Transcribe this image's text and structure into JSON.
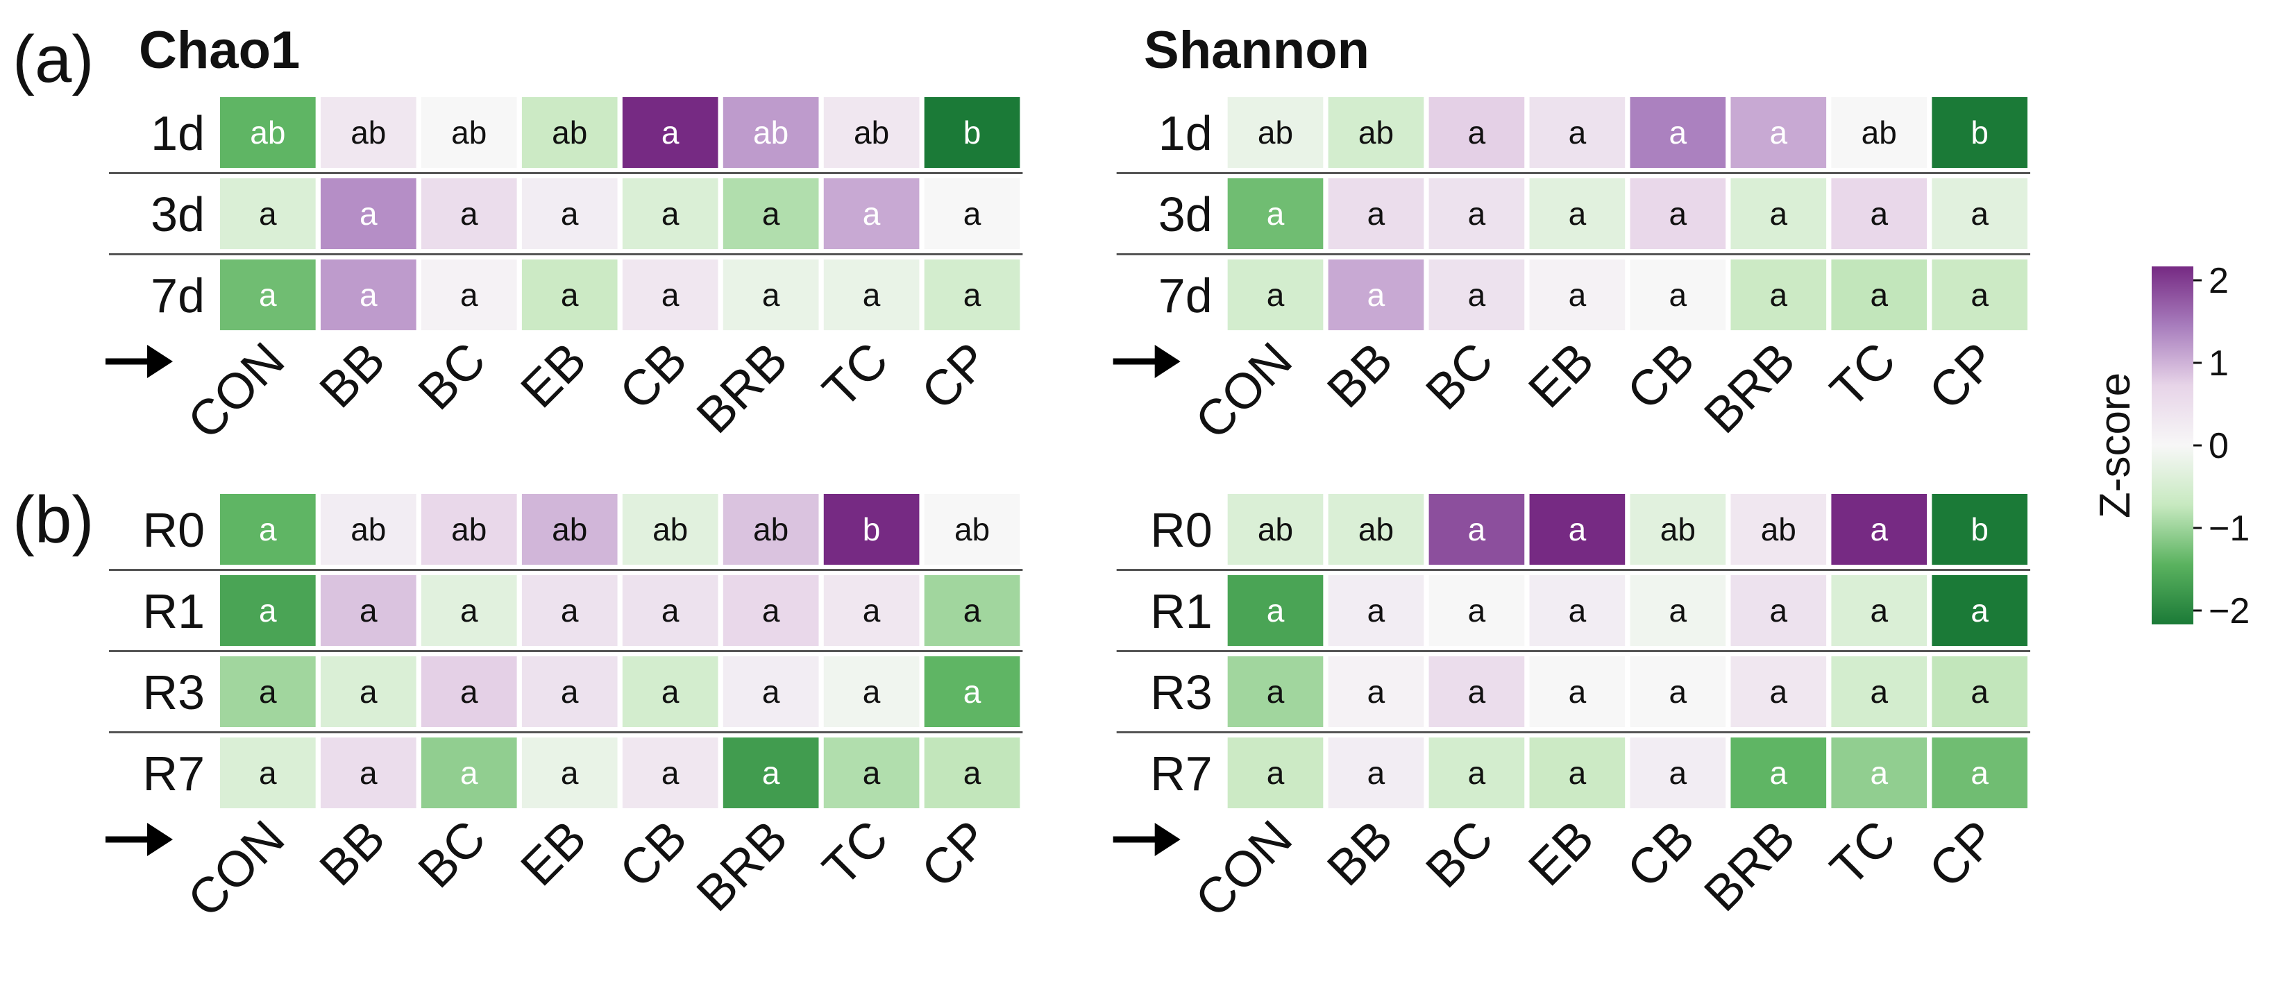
{
  "panels": [
    {
      "letter": "(a)"
    },
    {
      "letter": "(b)"
    }
  ],
  "chart_data": [
    {
      "type": "heatmap",
      "panel": "(a)",
      "title": "Chao1",
      "rows": [
        "1d",
        "3d",
        "7d"
      ],
      "categories": [
        "CON",
        "BB",
        "BC",
        "EB",
        "CB",
        "BRB",
        "TC",
        "CP"
      ],
      "z": [
        [
          -1.3,
          0.3,
          0.0,
          -0.6,
          2.1,
          1.1,
          0.3,
          -2.0
        ],
        [
          -0.4,
          1.2,
          0.5,
          0.2,
          -0.4,
          -0.8,
          1.0,
          0.0
        ],
        [
          -1.2,
          1.1,
          0.1,
          -0.6,
          0.3,
          -0.2,
          -0.2,
          -0.5
        ]
      ],
      "letters": [
        [
          "ab",
          "ab",
          "ab",
          "ab",
          "a",
          "ab",
          "ab",
          "b"
        ],
        [
          "a",
          "a",
          "a",
          "a",
          "a",
          "a",
          "a",
          "a"
        ],
        [
          "a",
          "a",
          "a",
          "a",
          "a",
          "a",
          "a",
          "a"
        ]
      ]
    },
    {
      "type": "heatmap",
      "panel": "(a)",
      "title": "Shannon",
      "rows": [
        "1d",
        "3d",
        "7d"
      ],
      "categories": [
        "CON",
        "BB",
        "BC",
        "EB",
        "CB",
        "BRB",
        "TC",
        "CP"
      ],
      "z": [
        [
          -0.2,
          -0.5,
          0.7,
          0.4,
          1.3,
          1.0,
          0.0,
          -2.0
        ],
        [
          -1.2,
          0.5,
          0.4,
          -0.3,
          0.6,
          -0.4,
          0.6,
          -0.3
        ],
        [
          -0.5,
          1.0,
          0.4,
          0.1,
          0.0,
          -0.6,
          -0.7,
          -0.6
        ]
      ],
      "letters": [
        [
          "ab",
          "ab",
          "a",
          "a",
          "a",
          "a",
          "ab",
          "b"
        ],
        [
          "a",
          "a",
          "a",
          "a",
          "a",
          "a",
          "a",
          "a"
        ],
        [
          "a",
          "a",
          "a",
          "a",
          "a",
          "a",
          "a",
          "a"
        ]
      ]
    },
    {
      "type": "heatmap",
      "panel": "(b)",
      "title": "",
      "rows": [
        "R0",
        "R1",
        "R3",
        "R7"
      ],
      "categories": [
        "CON",
        "BB",
        "BC",
        "EB",
        "CB",
        "BRB",
        "TC",
        "CP"
      ],
      "z": [
        [
          -1.3,
          0.2,
          0.6,
          0.9,
          -0.3,
          0.8,
          2.1,
          0.0
        ],
        [
          -1.5,
          0.8,
          -0.3,
          0.4,
          0.4,
          0.6,
          0.3,
          -0.9
        ],
        [
          -0.9,
          -0.4,
          0.7,
          0.4,
          -0.5,
          0.2,
          -0.1,
          -1.3
        ],
        [
          -0.4,
          0.5,
          -1.0,
          -0.2,
          0.3,
          -1.6,
          -0.8,
          -0.7
        ]
      ],
      "letters": [
        [
          "a",
          "ab",
          "ab",
          "ab",
          "ab",
          "ab",
          "b",
          "ab"
        ],
        [
          "a",
          "a",
          "a",
          "a",
          "a",
          "a",
          "a",
          "a"
        ],
        [
          "a",
          "a",
          "a",
          "a",
          "a",
          "a",
          "a",
          "a"
        ],
        [
          "a",
          "a",
          "a",
          "a",
          "a",
          "a",
          "a",
          "a"
        ]
      ]
    },
    {
      "type": "heatmap",
      "panel": "(b)",
      "title": "",
      "rows": [
        "R0",
        "R1",
        "R3",
        "R7"
      ],
      "categories": [
        "CON",
        "BB",
        "BC",
        "EB",
        "CB",
        "BRB",
        "TC",
        "CP"
      ],
      "z": [
        [
          -0.4,
          -0.4,
          1.7,
          2.0,
          -0.3,
          0.3,
          2.0,
          -2.1
        ],
        [
          -1.5,
          0.2,
          0.0,
          0.2,
          -0.1,
          0.4,
          -0.4,
          -2.0
        ],
        [
          -0.9,
          0.1,
          0.5,
          0.0,
          0.0,
          0.3,
          -0.5,
          -0.7
        ],
        [
          -0.6,
          0.2,
          -0.5,
          -0.6,
          0.2,
          -1.3,
          -1.0,
          -1.2
        ]
      ],
      "letters": [
        [
          "ab",
          "ab",
          "a",
          "a",
          "ab",
          "ab",
          "a",
          "b"
        ],
        [
          "a",
          "a",
          "a",
          "a",
          "a",
          "a",
          "a",
          "a"
        ],
        [
          "a",
          "a",
          "a",
          "a",
          "a",
          "a",
          "a",
          "a"
        ],
        [
          "a",
          "a",
          "a",
          "a",
          "a",
          "a",
          "a",
          "a"
        ]
      ]
    }
  ],
  "colorbar": {
    "title": "Z-score",
    "range": [
      -2,
      2
    ],
    "ticks": [
      "2",
      "1",
      "0",
      "−1",
      "−2"
    ],
    "colors": [
      "#1b7a37",
      "#5ab25f",
      "#c7e9c0",
      "#f7f7f7",
      "#e7d4e8",
      "#a87dbd",
      "#762a83"
    ]
  }
}
